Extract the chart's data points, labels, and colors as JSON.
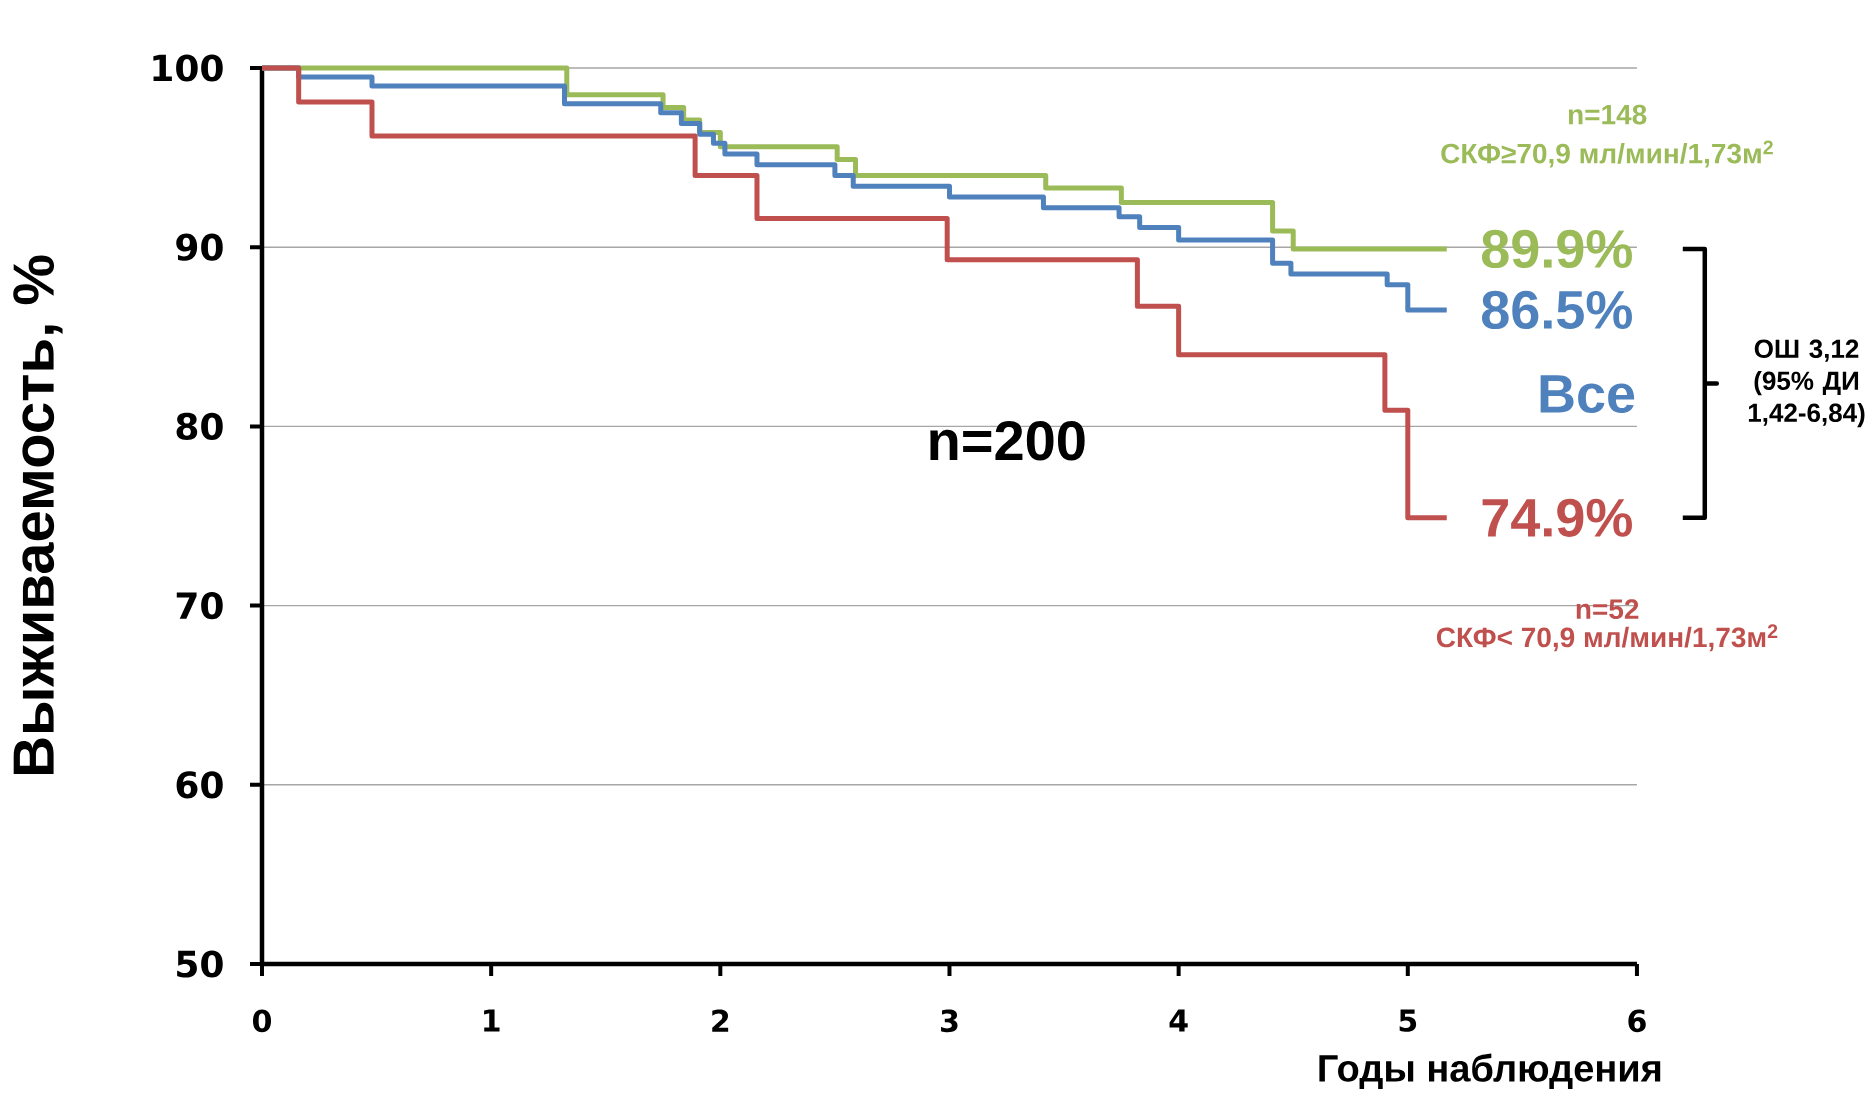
{
  "chart_data": {
    "type": "step",
    "xlabel": "Годы наблюдения",
    "ylabel": "Выживаемость, %",
    "xlim": [
      0,
      6
    ],
    "ylim": [
      50,
      100
    ],
    "xticks": [
      0,
      1,
      2,
      3,
      4,
      5,
      6
    ],
    "yticks": [
      50,
      60,
      70,
      80,
      90,
      100
    ],
    "grid": "y",
    "marker": "none",
    "line_style": "solid",
    "series": [
      {
        "name": "СКФ≥70,9 мл/мин/1,73м$^{2}$",
        "color": "#9bbb59",
        "x": [
          0,
          1.33,
          1.75,
          1.84,
          1.91,
          2.0,
          2.51,
          2.59,
          3.42,
          3.75,
          4.41,
          4.5,
          5.17
        ],
        "values": [
          100,
          98.5,
          97.8,
          97.1,
          96.4,
          95.6,
          94.9,
          94.0,
          93.3,
          92.5,
          90.9,
          89.9,
          89.9
        ],
        "value_labels": [
          null,
          null,
          null,
          null,
          null,
          null,
          null,
          null,
          null,
          null,
          null,
          null,
          "89.9%"
        ]
      },
      {
        "name": "Все",
        "color": "#4f81bd",
        "x": [
          0,
          0.16,
          0.48,
          1.32,
          1.74,
          1.83,
          1.91,
          1.97,
          2.02,
          2.16,
          2.5,
          2.58,
          3.0,
          3.41,
          3.74,
          3.83,
          4.0,
          4.41,
          4.49,
          4.91,
          5.0,
          5.17
        ],
        "values": [
          100,
          99.5,
          99.0,
          98.0,
          97.5,
          96.9,
          96.3,
          95.8,
          95.2,
          94.6,
          94.0,
          93.4,
          92.8,
          92.2,
          91.7,
          91.1,
          90.4,
          89.1,
          88.5,
          87.9,
          86.5,
          86.5
        ],
        "value_labels": [
          null,
          null,
          null,
          null,
          null,
          null,
          null,
          null,
          null,
          null,
          null,
          null,
          null,
          null,
          null,
          null,
          null,
          null,
          null,
          null,
          null,
          "86.5%"
        ]
      },
      {
        "name": "СКФ< 70,9 мл/мин/1,73м$^{2}$",
        "color": "#c0504d",
        "x": [
          0,
          0.16,
          0.48,
          1.89,
          2.16,
          2.99,
          3.82,
          4.0,
          4.9,
          5.0,
          5.17
        ],
        "values": [
          100,
          98.1,
          96.2,
          94.0,
          91.6,
          89.3,
          86.7,
          84.0,
          80.9,
          74.9,
          74.9
        ],
        "value_labels": [
          null,
          null,
          null,
          null,
          null,
          null,
          null,
          null,
          null,
          null,
          "74.9%"
        ]
      }
    ],
    "annotations": [
      "n=148",
      "n=52",
      "n=200",
      "ОШ 3,12 (95% ДИ 1,42-6,84)"
    ]
  }
}
